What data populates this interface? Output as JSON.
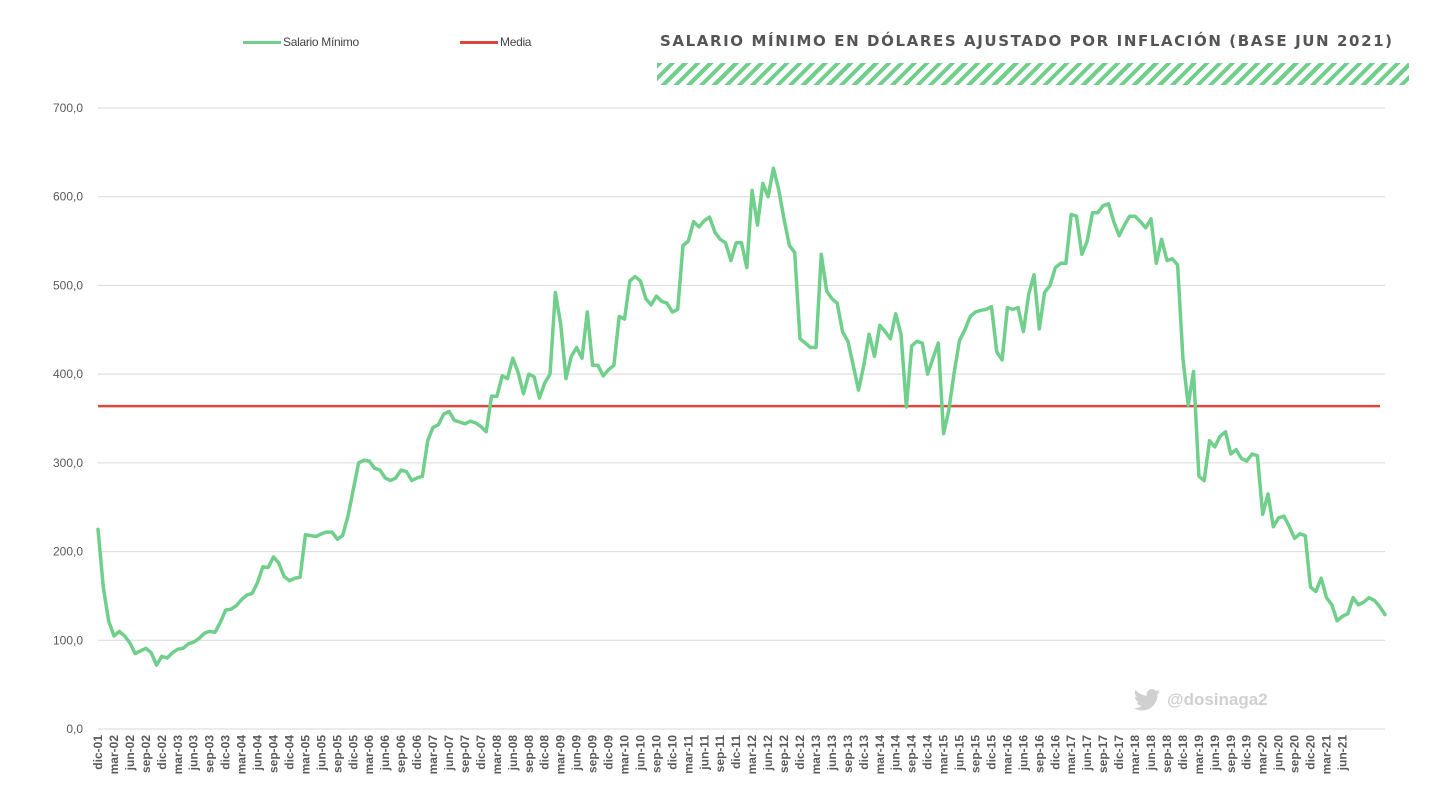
{
  "chart_data": {
    "type": "line",
    "title": "SALARIO MÍNIMO EN DÓLARES AJUSTADO POR INFLACIÓN (BASE JUN 2021)",
    "xlabel": "",
    "ylabel": "",
    "ylim": [
      0,
      700
    ],
    "yticks": [
      "0,0",
      "100,0",
      "200,0",
      "300,0",
      "400,0",
      "500,0",
      "600,0",
      "700,0"
    ],
    "grid": true,
    "legend_position": "top-left",
    "x_tick_labels": [
      "dic-01",
      "mar-02",
      "jun-02",
      "sep-02",
      "dic-02",
      "mar-03",
      "jun-03",
      "sep-03",
      "dic-03",
      "mar-04",
      "jun-04",
      "sep-04",
      "dic-04",
      "mar-05",
      "jun-05",
      "sep-05",
      "dic-05",
      "mar-06",
      "jun-06",
      "sep-06",
      "dic-06",
      "mar-07",
      "jun-07",
      "sep-07",
      "dic-07",
      "mar-08",
      "jun-08",
      "sep-08",
      "dic-08",
      "mar-09",
      "jun-09",
      "sep-09",
      "dic-09",
      "mar-10",
      "jun-10",
      "sep-10",
      "dic-10",
      "mar-11",
      "jun-11",
      "sep-11",
      "dic-11",
      "mar-12",
      "jun-12",
      "sep-12",
      "dic-12",
      "mar-13",
      "jun-13",
      "sep-13",
      "dic-13",
      "mar-14",
      "jun-14",
      "sep-14",
      "dic-14",
      "mar-15",
      "jun-15",
      "sep-15",
      "dic-15",
      "mar-16",
      "jun-16",
      "sep-16",
      "dic-16",
      "mar-17",
      "jun-17",
      "sep-17",
      "dic-17",
      "mar-18",
      "jun-18",
      "sep-18",
      "dic-18",
      "mar-19",
      "jun-19",
      "sep-19",
      "dic-19",
      "mar-20",
      "jun-20",
      "sep-20",
      "dic-20",
      "mar-21",
      "jun-21"
    ],
    "series": [
      {
        "name": "Salario Mínimo",
        "color": "#6fcf8b",
        "values": [
          225,
          160,
          122,
          105,
          110,
          105,
          97,
          85,
          88,
          91,
          86,
          72,
          82,
          80,
          86,
          90,
          91,
          96,
          98,
          102,
          108,
          110,
          109,
          120,
          134,
          135,
          139,
          146,
          151,
          153,
          165,
          183,
          182,
          194,
          187,
          172,
          167,
          170,
          171,
          219,
          218,
          217,
          220,
          222,
          222,
          214,
          218,
          240,
          270,
          300,
          303,
          302,
          294,
          292,
          283,
          280,
          283,
          292,
          290,
          280,
          283,
          285,
          325,
          340,
          343,
          355,
          358,
          348,
          346,
          344,
          347,
          345,
          341,
          335,
          375,
          375,
          398,
          395,
          418,
          402,
          378,
          400,
          397,
          373,
          390,
          400,
          492,
          456,
          395,
          420,
          430,
          418,
          470,
          410,
          410,
          398,
          405,
          410,
          465,
          462,
          505,
          510,
          505,
          485,
          478,
          488,
          482,
          480,
          470,
          473,
          545,
          550,
          572,
          566,
          573,
          577,
          560,
          552,
          548,
          528,
          548,
          548,
          520,
          607,
          568,
          615,
          600,
          632,
          608,
          575,
          545,
          537,
          440,
          435,
          430,
          430,
          535,
          494,
          485,
          480,
          448,
          437,
          410,
          382,
          410,
          445,
          420,
          455,
          448,
          440,
          468,
          445,
          363,
          432,
          437,
          435,
          400,
          418,
          435,
          333,
          360,
          402,
          438,
          450,
          465,
          470,
          472,
          473,
          476,
          425,
          416,
          475,
          473,
          475,
          448,
          490,
          512,
          451,
          492,
          500,
          520,
          525,
          525,
          580,
          578,
          535,
          550,
          582,
          582,
          590,
          592,
          572,
          556,
          568,
          578,
          578,
          572,
          565,
          575,
          525,
          552,
          528,
          530,
          523,
          418,
          365,
          403,
          285,
          280,
          325,
          318,
          330,
          335,
          310,
          315,
          305,
          302,
          310,
          308,
          242,
          265,
          228,
          238,
          240,
          228,
          215,
          220,
          218,
          160,
          155,
          170,
          148,
          140,
          122,
          127,
          130,
          148,
          140,
          143,
          148,
          145,
          138,
          129
        ]
      },
      {
        "name": "Media",
        "color": "#d9473e",
        "value": 364
      }
    ]
  },
  "watermark": {
    "icon": "twitter-bird-icon",
    "text": "@dosinaga2"
  }
}
